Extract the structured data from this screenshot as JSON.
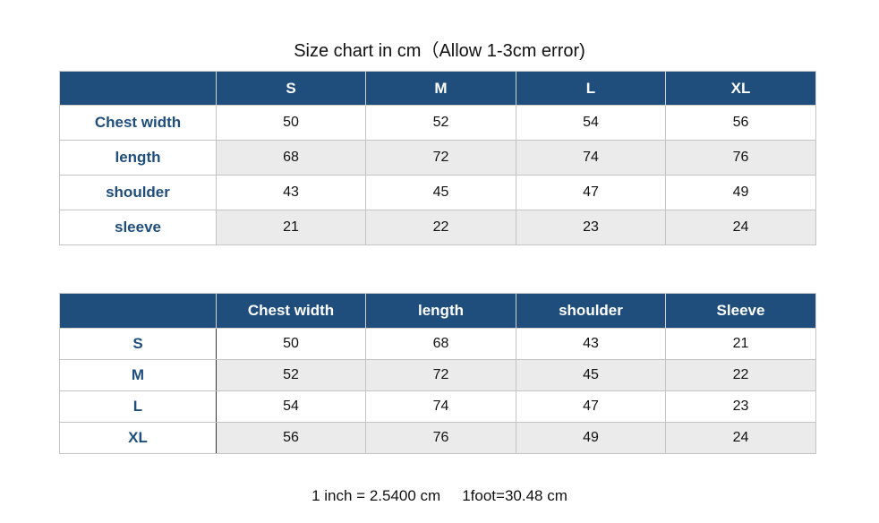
{
  "title": "Size chart in cm（Allow 1-3cm error)",
  "header_color": "#1f4e7d",
  "table1": {
    "headers": [
      "",
      "S",
      "M",
      "L",
      "XL"
    ],
    "rows": [
      {
        "label": "Chest width",
        "values": [
          "50",
          "52",
          "54",
          "56"
        ]
      },
      {
        "label": "length",
        "values": [
          "68",
          "72",
          "74",
          "76"
        ]
      },
      {
        "label": "shoulder",
        "values": [
          "43",
          "45",
          "47",
          "49"
        ]
      },
      {
        "label": "sleeve",
        "values": [
          "21",
          "22",
          "23",
          "24"
        ]
      }
    ]
  },
  "table2": {
    "headers": [
      "",
      "Chest width",
      "length",
      "shoulder",
      "Sleeve"
    ],
    "rows": [
      {
        "label": "S",
        "values": [
          "50",
          "68",
          "43",
          "21"
        ]
      },
      {
        "label": "M",
        "values": [
          "52",
          "72",
          "45",
          "22"
        ]
      },
      {
        "label": "L",
        "values": [
          "54",
          "74",
          "47",
          "23"
        ]
      },
      {
        "label": "XL",
        "values": [
          "56",
          "76",
          "49",
          "24"
        ]
      }
    ]
  },
  "footer": {
    "inch": "1 inch = 2.5400 cm",
    "foot": "1foot=30.48 cm"
  }
}
